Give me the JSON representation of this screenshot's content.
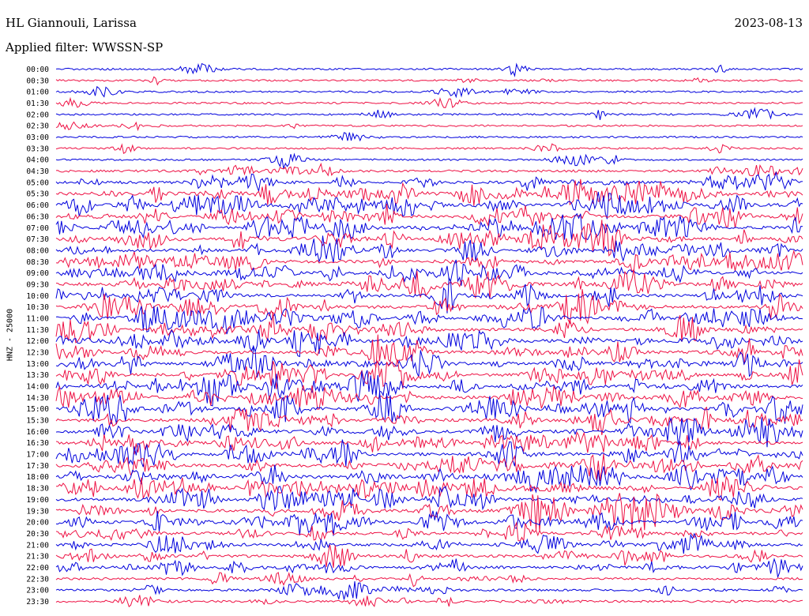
{
  "header": {
    "station": "HL Giannouli, Larissa",
    "date": "2023-08-13",
    "filter": "Applied filter: WWSSN-SP"
  },
  "chart_data": {
    "type": "line",
    "title": "HL Giannouli, Larissa",
    "subtitle": "Applied filter: WWSSN-SP",
    "ylabel": "HNZ - 25000",
    "xlabel": "",
    "series_colors": [
      "#0000dd",
      "#ee1144"
    ],
    "grid": false,
    "legend": "none",
    "row_labels": [
      "00:00",
      "00:30",
      "01:00",
      "01:30",
      "02:00",
      "02:30",
      "03:00",
      "03:30",
      "04:00",
      "04:30",
      "05:00",
      "05:30",
      "06:00",
      "06:30",
      "07:00",
      "07:30",
      "08:00",
      "08:30",
      "09:00",
      "09:30",
      "10:00",
      "10:30",
      "11:00",
      "11:30",
      "12:00",
      "12:30",
      "13:00",
      "13:30",
      "14:00",
      "14:30",
      "15:00",
      "15:30",
      "16:00",
      "16:30",
      "17:00",
      "17:30",
      "18:00",
      "18:30",
      "19:00",
      "19:30",
      "20:00",
      "20:30",
      "21:00",
      "21:30",
      "22:00",
      "22:30",
      "23:00",
      "23:30"
    ],
    "row_minutes": 30,
    "activity_level": [
      1,
      1,
      1,
      1,
      1,
      1,
      1,
      1,
      1,
      2,
      3,
      4,
      4,
      4,
      4,
      4,
      4,
      4,
      4,
      4,
      4,
      4,
      4,
      4,
      4,
      4,
      4,
      4,
      4,
      4,
      4,
      4,
      4,
      4,
      4,
      4,
      4,
      4,
      4,
      4,
      4,
      3,
      3,
      3,
      3,
      2,
      2,
      2
    ]
  }
}
